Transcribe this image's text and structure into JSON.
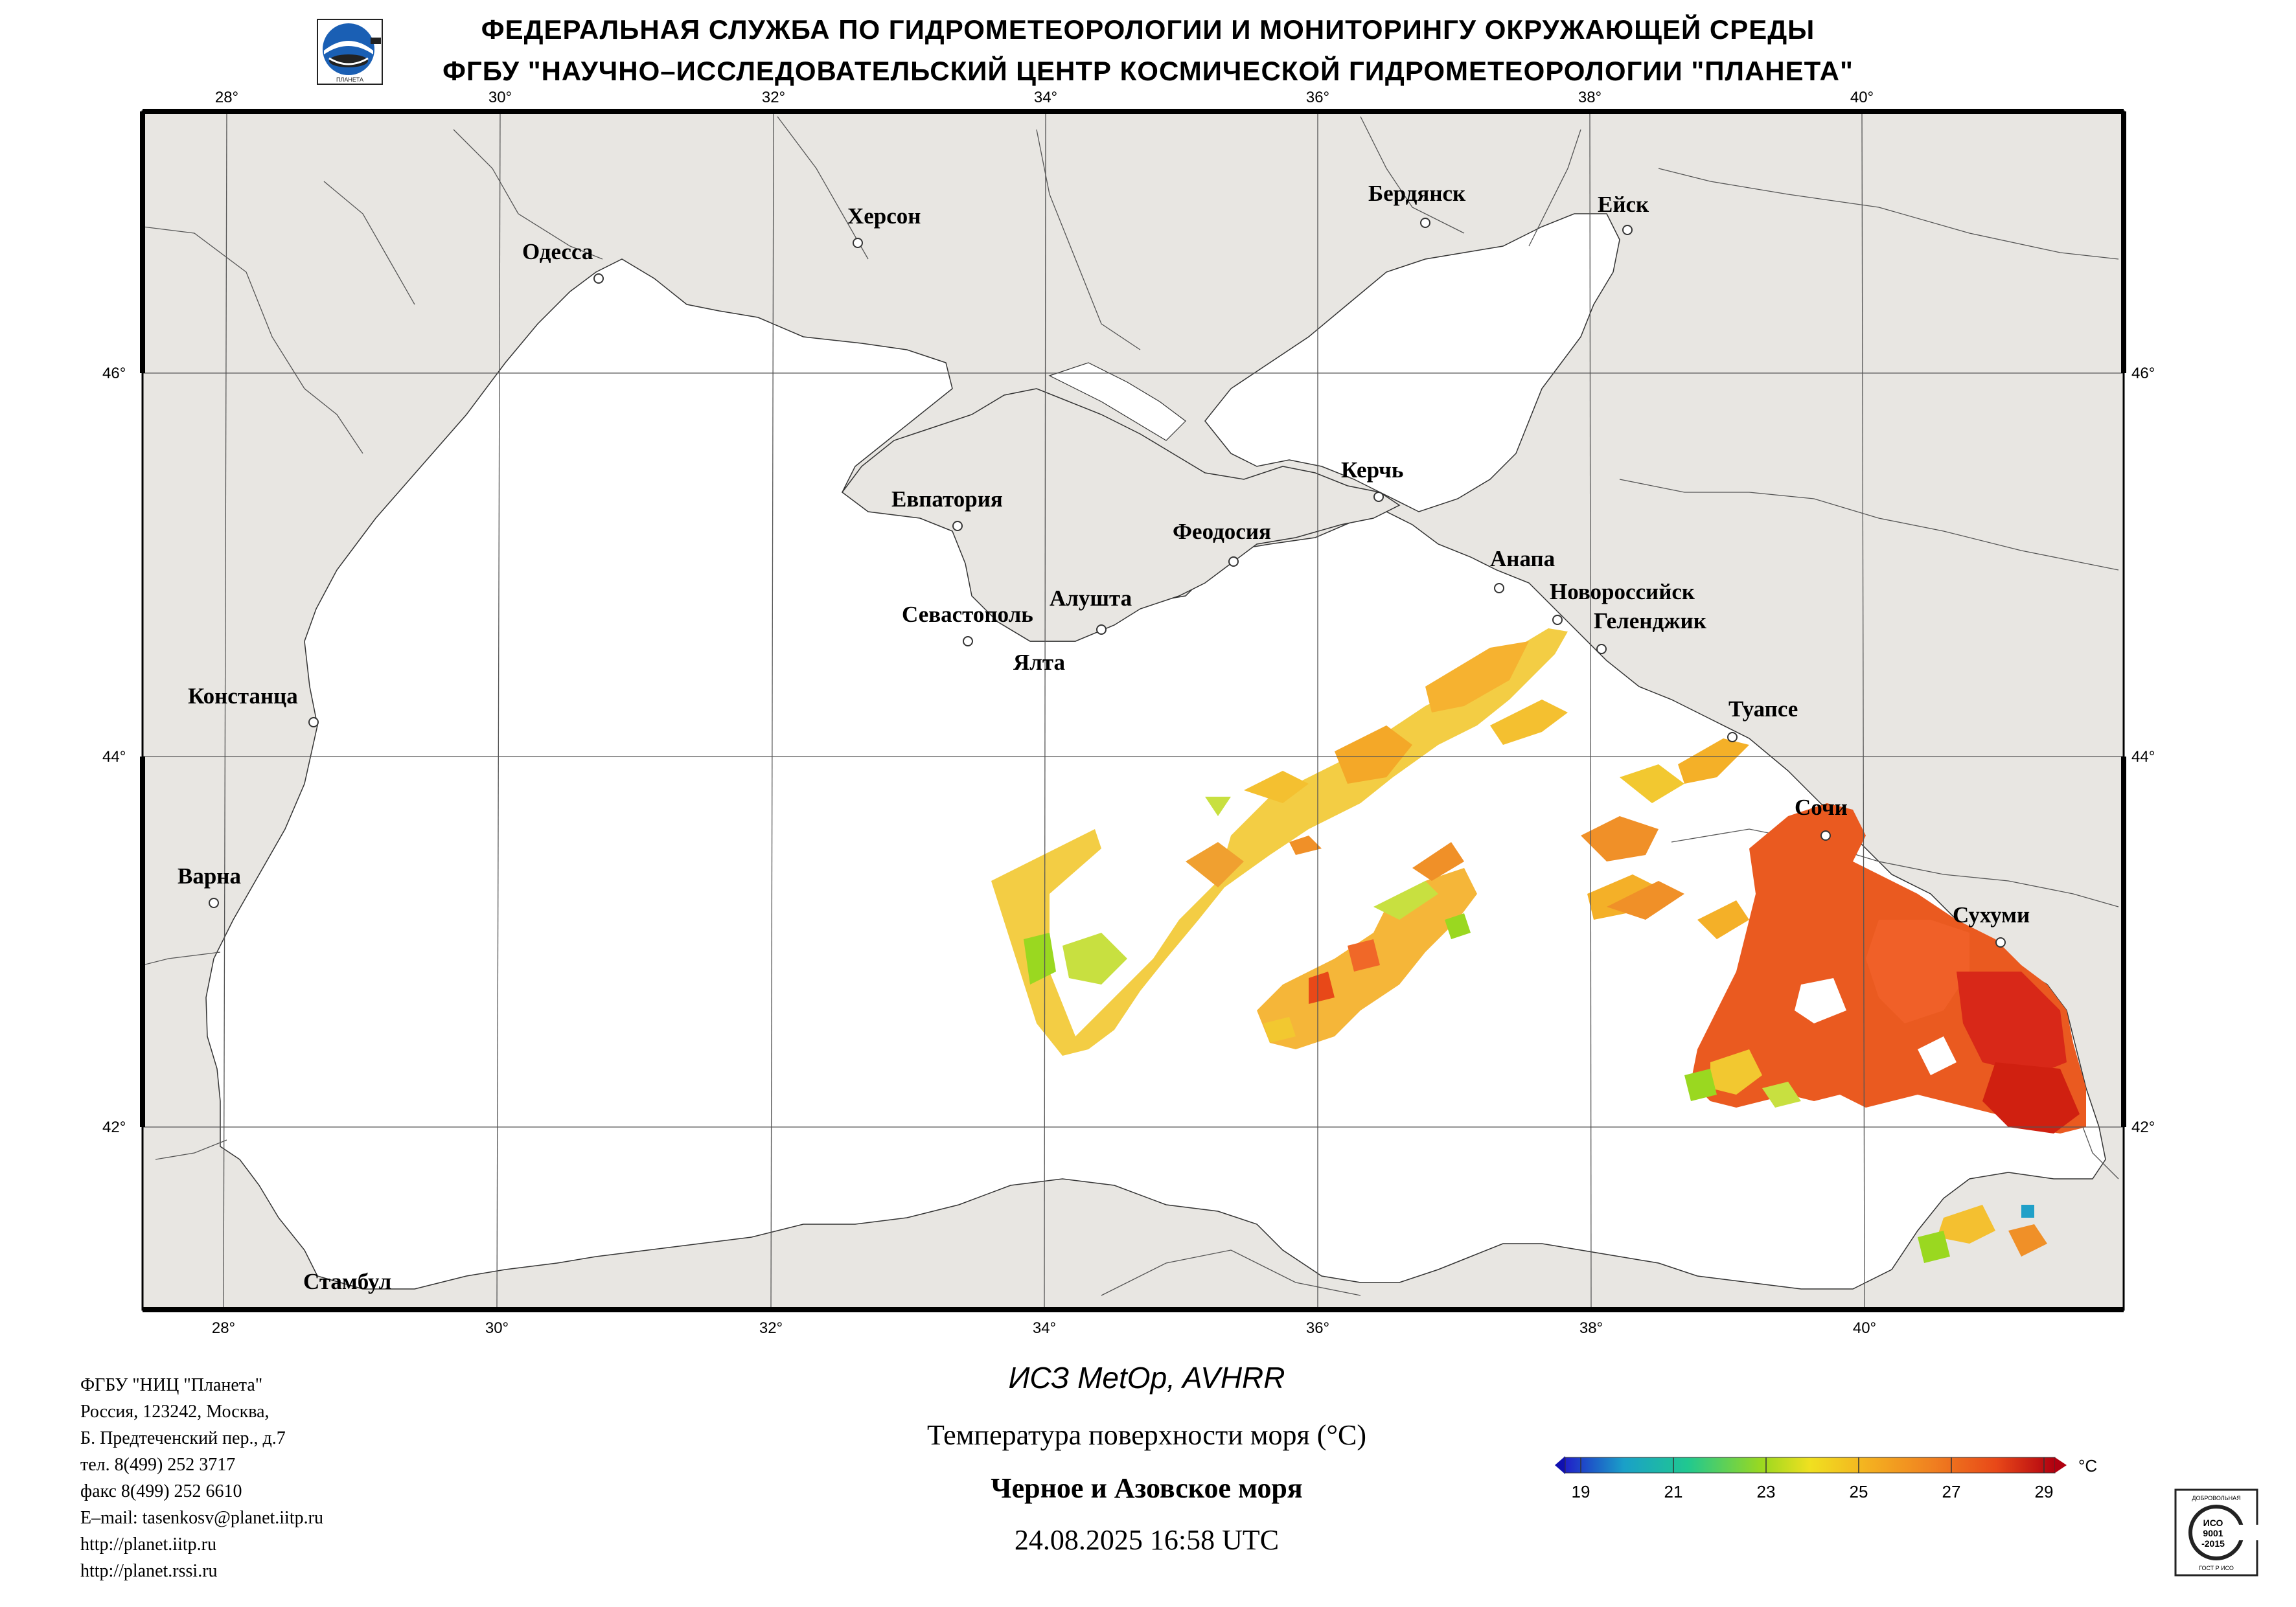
{
  "header": {
    "line1": "ФЕДЕРАЛЬНАЯ СЛУЖБА ПО ГИДРОМЕТЕОРОЛОГИИ И МОНИТОРИНГУ ОКРУЖАЮЩЕЙ СРЕДЫ",
    "line2": "ФГБУ \"НАУЧНО–ИССЛЕДОВАТЕЛЬСКИЙ ЦЕНТР КОСМИЧЕСКОЙ ГИДРОМЕТЕОРОЛОГИИ \"ПЛАНЕТА\""
  },
  "map": {
    "lon_ticks": [
      "28°",
      "30°",
      "32°",
      "34°",
      "36°",
      "38°",
      "40°"
    ],
    "lat_ticks": [
      "46°",
      "44°",
      "42°"
    ],
    "cities": [
      "Одесса",
      "Херсон",
      "Бердянск",
      "Ейск",
      "Евпатория",
      "Керчь",
      "Феодосия",
      "Анапа",
      "Новороссийск",
      "Геленджик",
      "Севастополь",
      "Алушта",
      "Ялта",
      "Констанца",
      "Туапсе",
      "Сочи",
      "Варна",
      "Сухуми",
      "Стамбул"
    ]
  },
  "address": {
    "lines": [
      "ФГБУ \"НИЦ \"Планета\"",
      "Россия, 123242, Москва,",
      "Б. Предтеченский пер., д.7",
      "тел. 8(499) 252 3717",
      "факс 8(499) 252 6610",
      "E–mail: tasenkosv@planet.iitp.ru",
      "http://planet.iitp.ru",
      "http://planet.rssi.ru"
    ]
  },
  "caption": {
    "satellite": "ИСЗ MetOp, AVHRR",
    "parameter": "Температура поверхности моря (°C)",
    "region": "Черное и Азовское моря",
    "datetime": "24.08.2025 16:58 UTC"
  },
  "colorbar": {
    "unit": "°C",
    "ticks": [
      "19",
      "21",
      "23",
      "25",
      "27",
      "29"
    ],
    "colors": [
      "#2020c8",
      "#1aa0c8",
      "#20c890",
      "#9ad820",
      "#f0e020",
      "#f4b020",
      "#f08020",
      "#e84818",
      "#d02010",
      "#b00010"
    ]
  },
  "iso_stamp": {
    "top": "ДОБРОВОЛЬНАЯ",
    "mid1": "ИСО",
    "mid2": "9001",
    "mid3": "-2015",
    "bottom": "ГОСТ Р ИСО"
  },
  "palette": {
    "land": "#e8e6e2",
    "sea": "#ffffff",
    "border": "#000000"
  }
}
